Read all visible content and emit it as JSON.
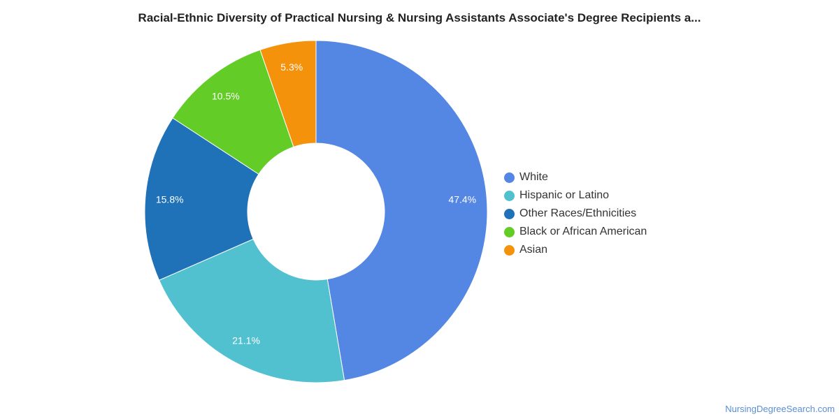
{
  "chart_data": {
    "type": "pie",
    "variant": "donut",
    "title": "Racial-Ethnic Diversity of Practical Nursing & Nursing Assistants Associate's Degree Recipients a...",
    "legend_position": "right",
    "slices": [
      {
        "label": "White",
        "value": 47.4,
        "value_label": "47.4%",
        "color": "#5486e3"
      },
      {
        "label": "Hispanic or Latino",
        "value": 21.1,
        "value_label": "21.1%",
        "color": "#52c1cf"
      },
      {
        "label": "Other Races/Ethnicities",
        "value": 15.8,
        "value_label": "15.8%",
        "color": "#1f71b8"
      },
      {
        "label": "Black or African American",
        "value": 10.5,
        "value_label": "10.5%",
        "color": "#63cc27"
      },
      {
        "label": "Asian",
        "value": 5.3,
        "value_label": "5.3%",
        "color": "#f5920c"
      }
    ]
  },
  "credit": "NursingDegreeSearch.com"
}
